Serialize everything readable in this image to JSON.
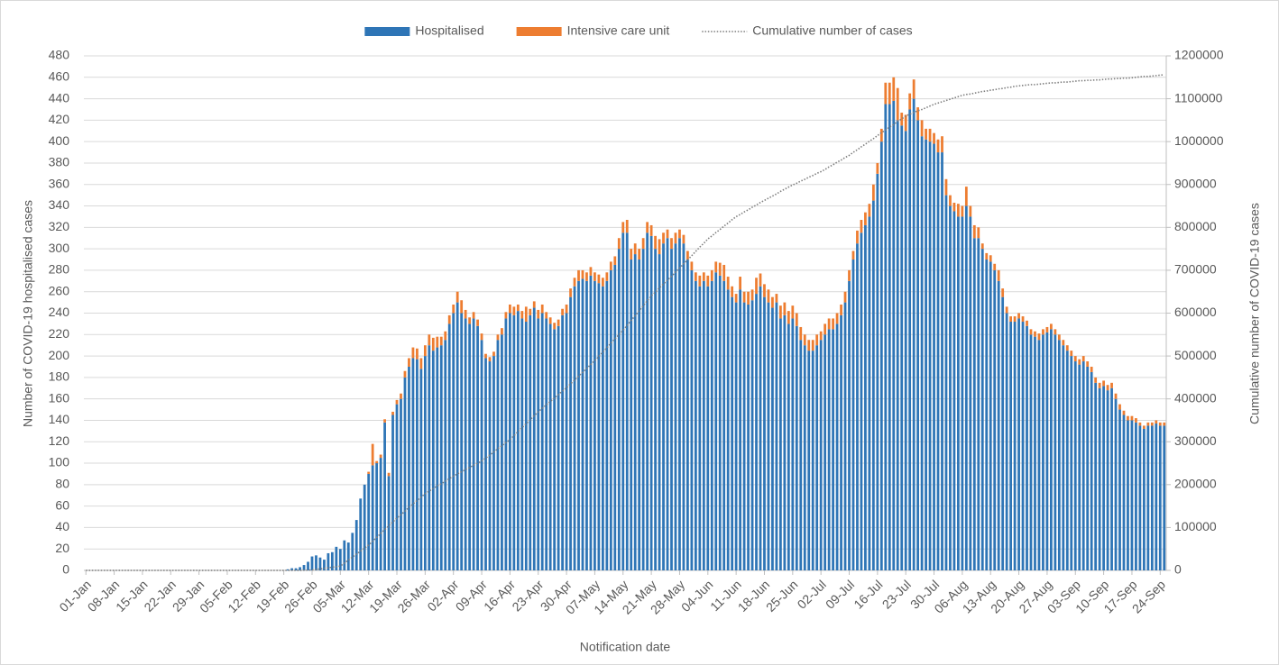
{
  "chart_data": {
    "type": "bar",
    "stacked": true,
    "grid": true,
    "y_label": "Number of COVID-19 hospitalised cases",
    "y2_label": "Cumulative number of COVID-19 cases",
    "x_label": "Notification date",
    "legend": "top",
    "ylim": [
      0,
      480
    ],
    "yticks": [
      0,
      20,
      40,
      60,
      80,
      100,
      120,
      140,
      160,
      180,
      200,
      220,
      240,
      260,
      280,
      300,
      320,
      340,
      360,
      380,
      400,
      420,
      440,
      460,
      480
    ],
    "y2lim": [
      0,
      1200000
    ],
    "y2ticks": [
      0,
      100000,
      200000,
      300000,
      400000,
      500000,
      600000,
      700000,
      800000,
      900000,
      1000000,
      1100000,
      1200000
    ],
    "categories": [
      "01-Jan",
      null,
      null,
      null,
      null,
      null,
      null,
      "08-Jan",
      null,
      null,
      null,
      null,
      null,
      null,
      "15-Jan",
      null,
      null,
      null,
      null,
      null,
      null,
      "22-Jan",
      null,
      null,
      null,
      null,
      null,
      null,
      "29-Jan",
      null,
      null,
      null,
      null,
      null,
      null,
      "05-Feb",
      null,
      null,
      null,
      null,
      null,
      null,
      "12-Feb",
      null,
      null,
      null,
      null,
      null,
      null,
      "19-Feb",
      null,
      null,
      null,
      null,
      null,
      null,
      "26-Feb",
      null,
      null,
      null,
      null,
      null,
      null,
      "05-Mar",
      null,
      null,
      null,
      null,
      null,
      null,
      "12-Mar",
      null,
      null,
      null,
      null,
      null,
      null,
      "19-Mar",
      null,
      null,
      null,
      null,
      null,
      null,
      "26-Mar",
      null,
      null,
      null,
      null,
      null,
      null,
      "02-Apr",
      null,
      null,
      null,
      null,
      null,
      null,
      "09-Apr",
      null,
      null,
      null,
      null,
      null,
      null,
      "16-Apr",
      null,
      null,
      null,
      null,
      null,
      null,
      "23-Apr",
      null,
      null,
      null,
      null,
      null,
      null,
      "30-Apr",
      null,
      null,
      null,
      null,
      null,
      null,
      "07-May",
      null,
      null,
      null,
      null,
      null,
      null,
      "14-May",
      null,
      null,
      null,
      null,
      null,
      null,
      "21-May",
      null,
      null,
      null,
      null,
      null,
      null,
      "28-May",
      null,
      null,
      null,
      null,
      null,
      null,
      "04-Jun",
      null,
      null,
      null,
      null,
      null,
      null,
      "11-Jun",
      null,
      null,
      null,
      null,
      null,
      null,
      "18-Jun",
      null,
      null,
      null,
      null,
      null,
      null,
      "25-Jun",
      null,
      null,
      null,
      null,
      null,
      null,
      "02-Jul",
      null,
      null,
      null,
      null,
      null,
      null,
      "09-Jul",
      null,
      null,
      null,
      null,
      null,
      null,
      "16-Jul",
      null,
      null,
      null,
      null,
      null,
      null,
      "23-Jul",
      null,
      null,
      null,
      null,
      null,
      null,
      "30-Jul",
      null,
      null,
      null,
      null,
      null,
      null,
      "06-Aug",
      null,
      null,
      null,
      null,
      null,
      null,
      "13-Aug",
      null,
      null,
      null,
      null,
      null,
      null,
      "20-Aug",
      null,
      null,
      null,
      null,
      null,
      null,
      "27-Aug",
      null,
      null,
      null,
      null,
      null,
      null,
      "03-Sep",
      null,
      null,
      null,
      null,
      null,
      null,
      "10-Sep",
      null,
      null,
      null,
      null,
      null,
      null,
      "17-Sep",
      null,
      null,
      null,
      null,
      null,
      null,
      "24-Sep",
      null
    ],
    "series": [
      {
        "name": "Hospitalised",
        "color": "#2e75b6",
        "values": [
          0,
          0,
          0,
          0,
          0,
          0,
          0,
          0,
          0,
          0,
          0,
          0,
          0,
          0,
          0,
          0,
          0,
          0,
          0,
          0,
          0,
          0,
          0,
          0,
          0,
          0,
          0,
          0,
          0,
          0,
          0,
          0,
          0,
          0,
          0,
          0,
          0,
          0,
          0,
          0,
          0,
          0,
          0,
          0,
          0,
          0,
          0,
          0,
          0,
          0,
          1,
          2,
          2,
          3,
          5,
          8,
          13,
          14,
          12,
          10,
          16,
          17,
          22,
          20,
          28,
          26,
          35,
          47,
          67,
          80,
          90,
          98,
          100,
          105,
          138,
          88,
          145,
          155,
          160,
          180,
          190,
          198,
          197,
          188,
          200,
          210,
          205,
          208,
          210,
          215,
          230,
          240,
          250,
          240,
          235,
          230,
          235,
          228,
          215,
          198,
          195,
          200,
          215,
          220,
          235,
          240,
          238,
          242,
          235,
          232,
          238,
          245,
          235,
          240,
          235,
          230,
          225,
          228,
          238,
          240,
          255,
          265,
          270,
          272,
          270,
          275,
          270,
          268,
          265,
          270,
          280,
          285,
          300,
          315,
          315,
          290,
          295,
          290,
          300,
          315,
          312,
          300,
          295,
          305,
          310,
          300,
          305,
          310,
          305,
          290,
          280,
          270,
          265,
          270,
          265,
          270,
          278,
          275,
          270,
          262,
          255,
          250,
          262,
          250,
          248,
          252,
          258,
          265,
          255,
          250,
          245,
          250,
          235,
          238,
          230,
          235,
          228,
          215,
          210,
          205,
          205,
          210,
          215,
          220,
          225,
          225,
          230,
          238,
          250,
          270,
          290,
          305,
          315,
          322,
          330,
          345,
          370,
          400,
          435,
          435,
          438,
          420,
          415,
          410,
          430,
          440,
          420,
          405,
          402,
          400,
          398,
          390,
          390,
          350,
          340,
          335,
          330,
          330,
          340,
          330,
          310,
          310,
          300,
          290,
          288,
          280,
          270,
          255,
          240,
          232,
          232,
          235,
          232,
          228,
          220,
          218,
          215,
          220,
          222,
          225,
          220,
          215,
          210,
          205,
          200,
          195,
          192,
          195,
          190,
          185,
          175,
          170,
          172,
          168,
          170,
          160,
          150,
          145,
          140,
          140,
          138,
          135,
          132,
          135,
          135,
          137,
          135,
          135
        ]
      },
      {
        "name": "Intensive care unit",
        "color": "#ed7d31",
        "values": [
          0,
          0,
          0,
          0,
          0,
          0,
          0,
          0,
          0,
          0,
          0,
          0,
          0,
          0,
          0,
          0,
          0,
          0,
          0,
          0,
          0,
          0,
          0,
          0,
          0,
          0,
          0,
          0,
          0,
          0,
          0,
          0,
          0,
          0,
          0,
          0,
          0,
          0,
          0,
          0,
          0,
          0,
          0,
          0,
          0,
          0,
          0,
          0,
          0,
          0,
          0,
          0,
          0,
          0,
          0,
          0,
          0,
          0,
          0,
          0,
          0,
          0,
          0,
          0,
          0,
          0,
          0,
          0,
          0,
          0,
          2,
          20,
          2,
          3,
          3,
          3,
          3,
          4,
          5,
          6,
          8,
          10,
          10,
          10,
          10,
          10,
          12,
          10,
          8,
          8,
          8,
          8,
          10,
          12,
          8,
          6,
          6,
          6,
          6,
          4,
          4,
          4,
          5,
          6,
          6,
          8,
          8,
          6,
          7,
          14,
          6,
          6,
          8,
          8,
          6,
          6,
          6,
          6,
          6,
          8,
          8,
          8,
          10,
          8,
          8,
          8,
          8,
          8,
          8,
          8,
          8,
          8,
          10,
          10,
          12,
          10,
          10,
          10,
          10,
          10,
          10,
          12,
          14,
          10,
          8,
          10,
          10,
          8,
          8,
          8,
          8,
          8,
          10,
          8,
          10,
          10,
          10,
          12,
          15,
          12,
          10,
          8,
          12,
          10,
          12,
          10,
          15,
          12,
          12,
          12,
          10,
          8,
          12,
          12,
          12,
          12,
          12,
          12,
          10,
          10,
          10,
          10,
          8,
          10,
          10,
          10,
          10,
          10,
          10,
          10,
          8,
          12,
          12,
          12,
          12,
          15,
          10,
          12,
          20,
          20,
          22,
          30,
          12,
          15,
          15,
          18,
          12,
          15,
          10,
          12,
          10,
          12,
          15,
          15,
          10,
          8,
          12,
          10,
          18,
          10,
          12,
          10,
          5,
          6,
          6,
          6,
          10,
          8,
          6,
          5,
          5,
          5,
          5,
          5,
          5,
          5,
          6,
          5,
          5,
          5,
          5,
          5,
          5,
          5,
          5,
          5,
          5,
          5,
          5,
          5,
          5,
          5,
          5,
          5,
          5,
          5,
          5,
          4,
          4,
          4,
          4,
          3,
          3,
          3,
          3,
          3,
          3,
          3
        ]
      },
      {
        "name": "Cumulative number of cases",
        "type": "line",
        "axis": "y2",
        "color": "#7f7f7f",
        "dash": "dotted",
        "values": [
          0,
          0,
          0,
          0,
          0,
          0,
          0,
          0,
          0,
          0,
          0,
          0,
          0,
          0,
          0,
          0,
          0,
          0,
          0,
          0,
          0,
          0,
          0,
          0,
          0,
          0,
          0,
          0,
          0,
          0,
          0,
          0,
          0,
          0,
          0,
          0,
          0,
          0,
          0,
          0,
          0,
          0,
          0,
          0,
          0,
          0,
          0,
          0,
          0,
          0,
          0,
          0,
          0,
          100,
          300,
          600,
          1000,
          2300,
          3600,
          4900,
          6100,
          7400,
          8700,
          10000,
          17000,
          24000,
          31000,
          38000,
          45000,
          52000,
          59000,
          68000,
          77000,
          86000,
          95000,
          104000,
          113000,
          122000,
          130000,
          138000,
          147000,
          155000,
          163000,
          171000,
          179000,
          185000,
          191000,
          197000,
          202000,
          208000,
          214000,
          220000,
          225000,
          230000,
          235000,
          240000,
          245000,
          250000,
          255000,
          262000,
          269000,
          276000,
          284000,
          291000,
          298000,
          305000,
          314000,
          324000,
          333000,
          342000,
          351000,
          361000,
          370000,
          378000,
          386000,
          394000,
          402000,
          410000,
          418000,
          426000,
          435000,
          444000,
          453000,
          462000,
          471000,
          480000,
          489000,
          499000,
          509000,
          519000,
          530000,
          540000,
          550000,
          560000,
          571000,
          583000,
          594000,
          606000,
          617000,
          629000,
          640000,
          649000,
          659000,
          668000,
          677000,
          686000,
          696000,
          705000,
          715000,
          724000,
          734000,
          744000,
          754000,
          763000,
          773000,
          780000,
          788000,
          795000,
          803000,
          810000,
          818000,
          825000,
          830000,
          836000,
          841000,
          847000,
          852000,
          858000,
          863000,
          868000,
          873000,
          878000,
          884000,
          889000,
          894000,
          899000,
          903000,
          908000,
          912000,
          917000,
          921000,
          926000,
          930000,
          935000,
          941000,
          946000,
          952000,
          957000,
          963000,
          968000,
          975000,
          981000,
          988000,
          994000,
          1001000,
          1007000,
          1014000,
          1021000,
          1027000,
          1034000,
          1040000,
          1047000,
          1053000,
          1060000,
          1064000,
          1068000,
          1072000,
          1075000,
          1079000,
          1083000,
          1087000,
          1090000,
          1093000,
          1096000,
          1099000,
          1102000,
          1105000,
          1108000,
          1110000,
          1111000,
          1113000,
          1115000,
          1117000,
          1118000,
          1120000,
          1121000,
          1123000,
          1124000,
          1126000,
          1127000,
          1129000,
          1130000,
          1131000,
          1132000,
          1133000,
          1133000,
          1134000,
          1135000,
          1136000,
          1137000,
          1137000,
          1138000,
          1139000,
          1139000,
          1140000,
          1141000,
          1142000,
          1142000,
          1143000,
          1143000,
          1144000,
          1144000,
          1145000,
          1146000,
          1146000,
          1147000,
          1147000,
          1148000,
          1148000,
          1149000,
          1150000,
          1151000,
          1152000,
          1152000,
          1153000,
          1154000,
          1155000,
          1156000
        ]
      }
    ]
  }
}
